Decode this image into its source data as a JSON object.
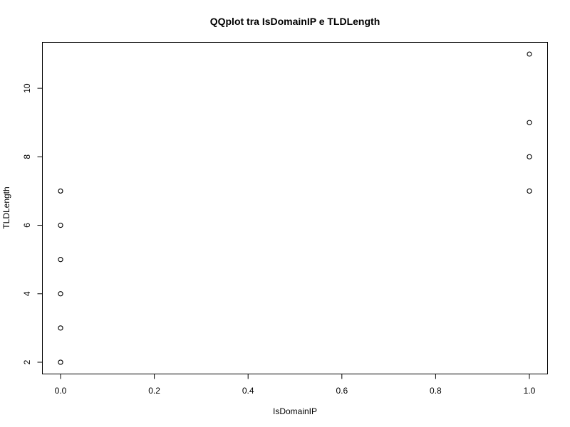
{
  "chart_data": {
    "type": "scatter",
    "title": "QQplot tra IsDomainIP e TLDLength",
    "xlabel": "IsDomainIP",
    "ylabel": "TLDLength",
    "xlim": [
      0,
      1
    ],
    "ylim": [
      2,
      11
    ],
    "grid": false,
    "legend": "none",
    "x_ticks": [
      0,
      0.2,
      0.4,
      0.6,
      0.8,
      1
    ],
    "x_tick_labels": [
      "0.0",
      "0.2",
      "0.4",
      "0.6",
      "0.8",
      "1.0"
    ],
    "y_ticks": [
      2,
      4,
      6,
      8,
      10
    ],
    "y_tick_labels": [
      "2",
      "4",
      "6",
      "8",
      "10"
    ],
    "marker": "open-circle",
    "points": [
      {
        "x": 0,
        "y": 2,
        "weight": 3
      },
      {
        "x": 0,
        "y": 3,
        "weight": 3
      },
      {
        "x": 0,
        "y": 4,
        "weight": 3
      },
      {
        "x": 0,
        "y": 5,
        "weight": 3
      },
      {
        "x": 0,
        "y": 6,
        "weight": 3
      },
      {
        "x": 0,
        "y": 7,
        "weight": 1
      },
      {
        "x": 1,
        "y": 7,
        "weight": 3
      },
      {
        "x": 1,
        "y": 8,
        "weight": 3
      },
      {
        "x": 1,
        "y": 9,
        "weight": 3
      },
      {
        "x": 1,
        "y": 11,
        "weight": 1
      }
    ]
  }
}
